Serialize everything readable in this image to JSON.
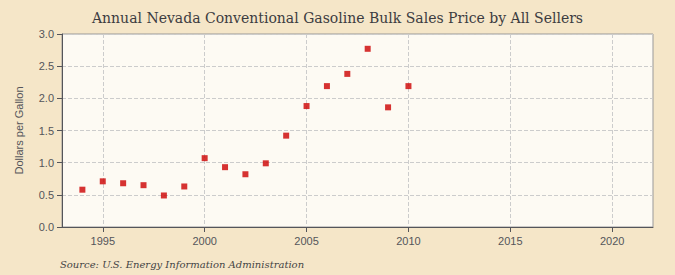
{
  "chart_data": {
    "type": "scatter",
    "title": "Annual Nevada Conventional Gasoline Bulk Sales Price by All Sellers",
    "y_label": "Dollars per Gallon",
    "source": "Source: U.S. Energy Information Administration",
    "x": [
      1994,
      1995,
      1996,
      1997,
      1998,
      1999,
      2000,
      2001,
      2002,
      2003,
      2004,
      2005,
      2006,
      2007,
      2008,
      2009,
      2010
    ],
    "values": [
      0.58,
      0.71,
      0.68,
      0.65,
      0.49,
      0.63,
      1.07,
      0.93,
      0.82,
      0.99,
      1.42,
      1.88,
      2.19,
      2.38,
      2.77,
      1.86,
      2.19
    ],
    "color": "#cc0000",
    "marker": "square",
    "xlim": [
      1993,
      2022
    ],
    "xticks": [
      1995,
      2000,
      2005,
      2010,
      2015,
      2020
    ],
    "ylim": [
      0.0,
      3.0
    ],
    "yticks": [
      {
        "value": 0,
        "label": "0.0"
      },
      0.5,
      {
        "value": 1,
        "label": "1.0"
      },
      1.5,
      {
        "value": 2,
        "label": "2.0"
      },
      2.5,
      {
        "value": 3,
        "label": "3.0"
      }
    ],
    "grid": true
  }
}
